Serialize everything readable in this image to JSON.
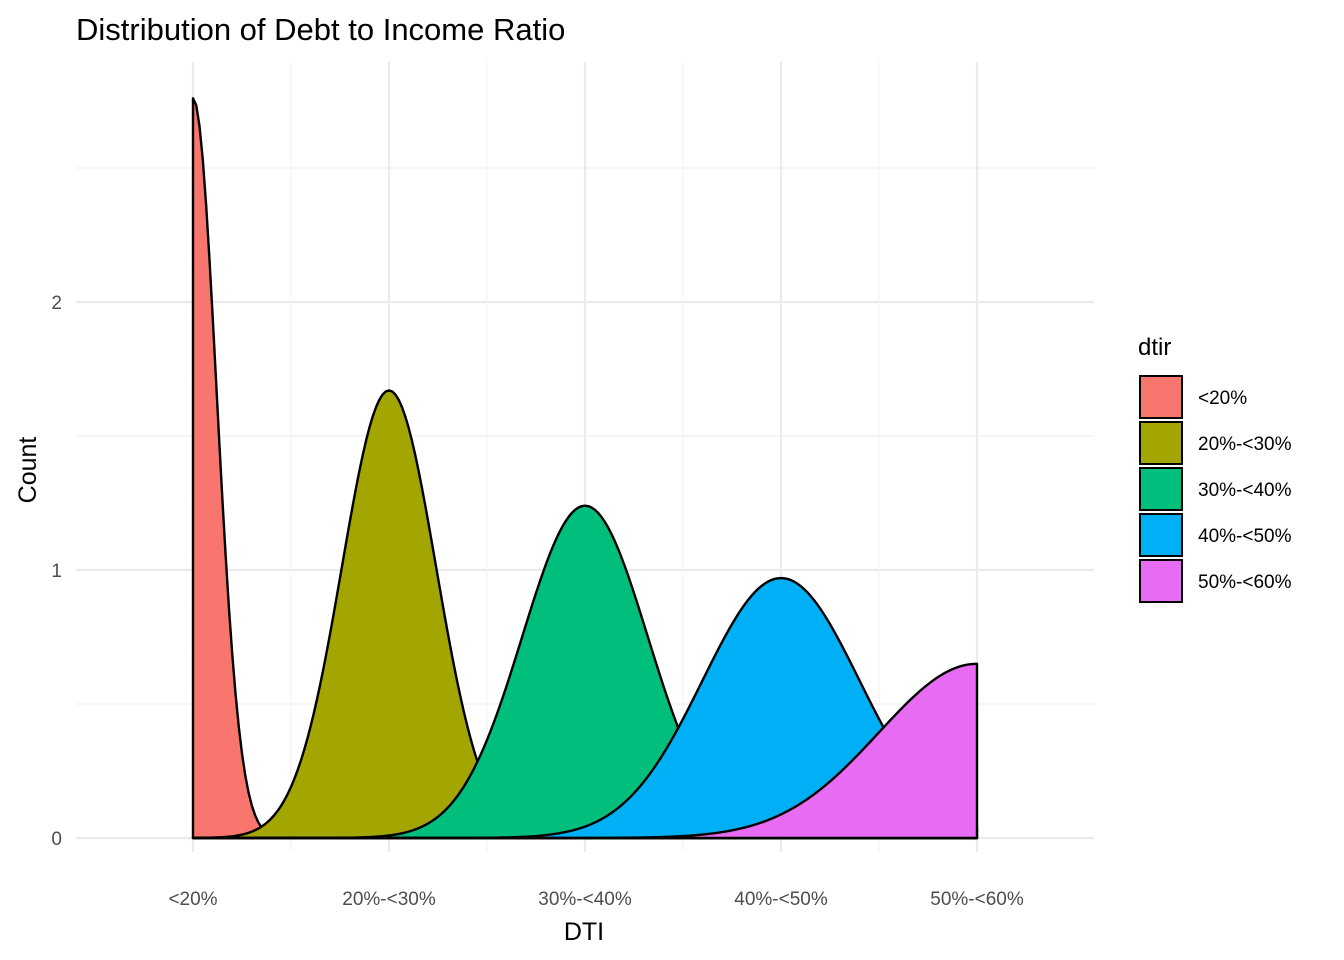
{
  "chart_data": {
    "type": "area",
    "title": "Distribution of Debt to Income Ratio",
    "xlabel": "DTI",
    "ylabel": "Count",
    "x_tick_labels": [
      "<20%",
      "20%-<30%",
      "30%-<40%",
      "40%-<50%",
      "50%-<60%"
    ],
    "x_range": [
      1,
      5
    ],
    "y_ticks": [
      0,
      1,
      2
    ],
    "ylim": [
      0,
      2.8
    ],
    "grid": true,
    "legend": {
      "title": "dtir",
      "position": "right"
    },
    "series": [
      {
        "name": "<20%",
        "color": "#F8766D",
        "peak_x": 1.0,
        "peak_y": 2.76,
        "sd": 0.12
      },
      {
        "name": "20%-<30%",
        "color": "#A3A500",
        "peak_x": 2.0,
        "peak_y": 1.67,
        "sd": 0.24
      },
      {
        "name": "30%-<40%",
        "color": "#00BF7D",
        "peak_x": 3.0,
        "peak_y": 1.24,
        "sd": 0.32
      },
      {
        "name": "40%-<50%",
        "color": "#00B0F6",
        "peak_x": 4.0,
        "peak_y": 0.97,
        "sd": 0.4
      },
      {
        "name": "50%-<60%",
        "color": "#E76BF3",
        "peak_x": 5.0,
        "peak_y": 0.65,
        "sd": 0.5
      }
    ]
  }
}
